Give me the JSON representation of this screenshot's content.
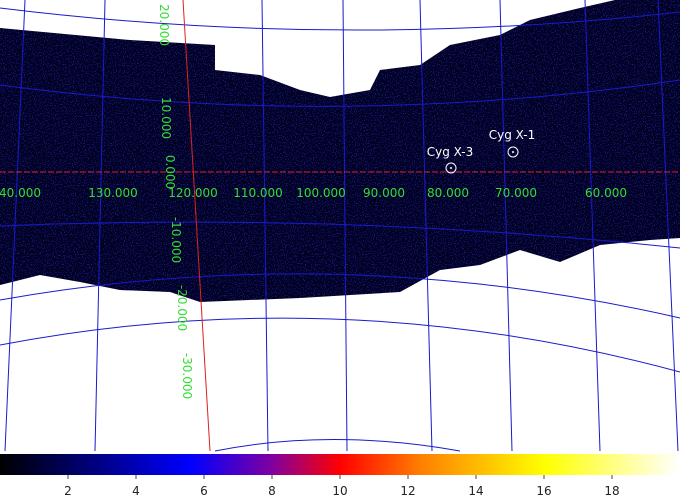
{
  "grid_labels": {
    "horizontal": [
      "40.000",
      "130.000",
      "120.000",
      "110.000",
      "100.000",
      "90.000",
      "80.000",
      "70.000",
      "60.000"
    ],
    "vertical": [
      "20.000",
      "10.000",
      "0.000",
      "-10.000",
      "-20.000",
      "-30.000"
    ]
  },
  "sources": [
    "Cyg X-3",
    "Cyg X-1"
  ],
  "colorbar": {
    "lim": [
      0,
      20
    ],
    "ticks": [
      2,
      4,
      6,
      8,
      10,
      12,
      14,
      16,
      18
    ]
  }
}
